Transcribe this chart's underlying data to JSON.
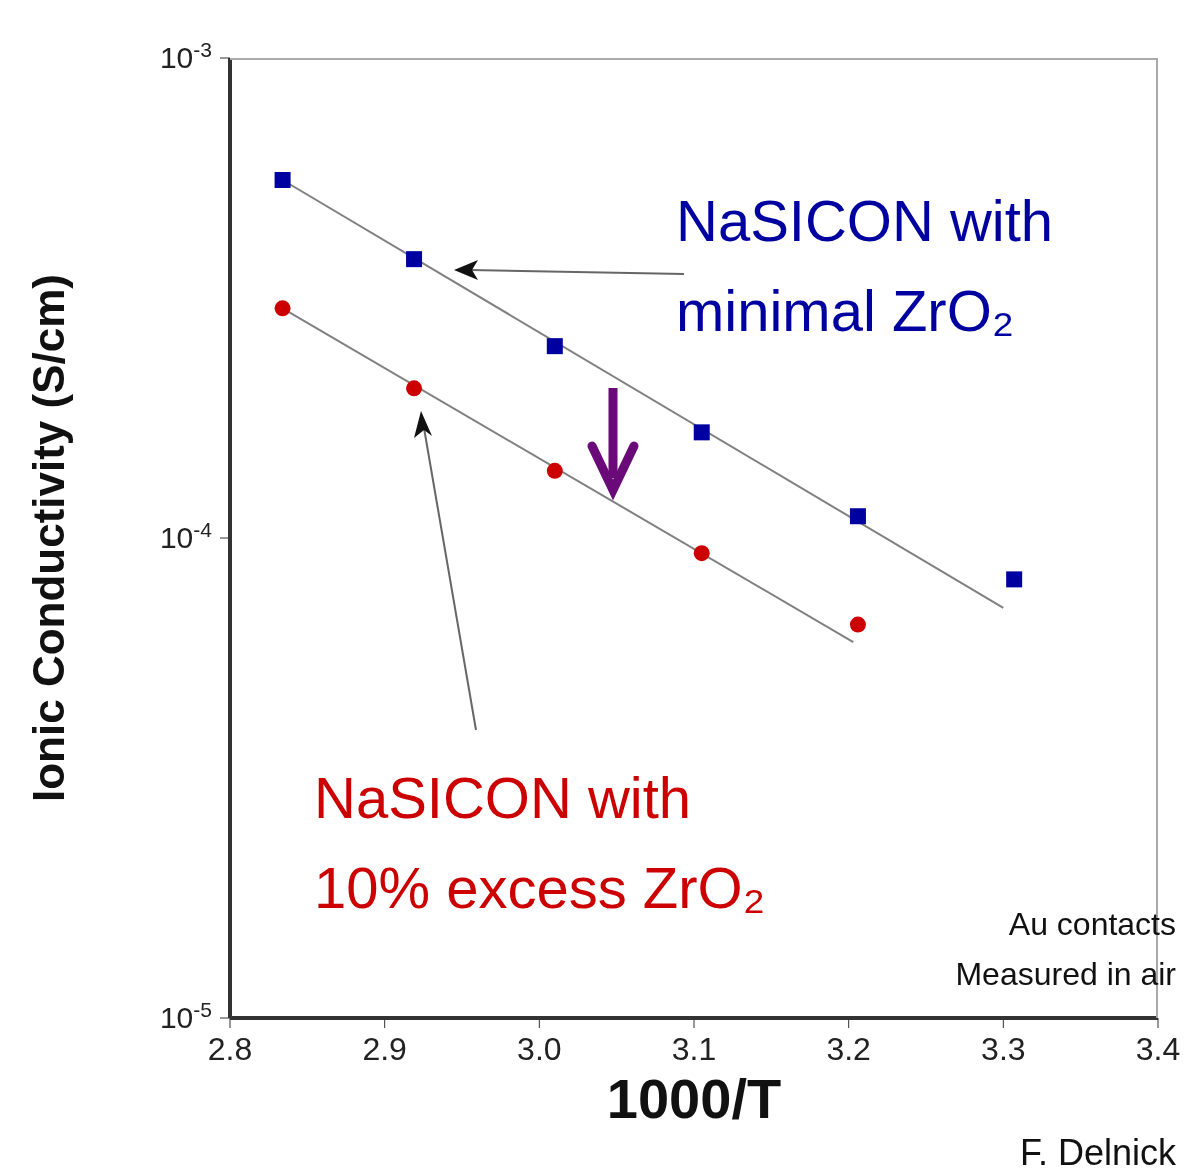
{
  "chart_data": {
    "type": "scatter",
    "xlabel": "1000/T",
    "ylabel": "Ionic Conductivity (S/cm)",
    "log": "y",
    "xlim": [
      2.8,
      3.4
    ],
    "xticks": [
      {
        "value": 2.8,
        "label": "2.8"
      },
      {
        "value": 2.9,
        "label": "2.9"
      },
      {
        "value": 3,
        "label": "3.0"
      },
      {
        "value": 3.1,
        "label": "3.1"
      },
      {
        "value": 3.2,
        "label": "3.2"
      },
      {
        "value": 3.3,
        "label": "3.3"
      },
      {
        "value": 3.4,
        "label": "3.4"
      }
    ],
    "ylim": [
      1e-05,
      0.001
    ],
    "yticks": [
      {
        "value": 1e-05,
        "label": "10$^{-5}$"
      },
      {
        "value": 0.0001,
        "label": "10$^{-4}$"
      },
      {
        "value": 0.001,
        "label": "10$^{-3}$"
      }
    ],
    "series": [
      {
        "name": "NaSICON with minimal ZrO₂",
        "marker": "square",
        "color": "#0000a0",
        "x": [
          2.834,
          2.919,
          3.01,
          3.105,
          3.206,
          3.307
        ],
        "values": [
          0.000557,
          0.000381,
          0.000251,
          0.000166,
          0.000111,
          8.2e-05
        ]
      },
      {
        "name": "NaSICON with 10% excess ZrO₂",
        "marker": "circle",
        "color": "#cc0000",
        "x": [
          2.834,
          2.919,
          3.01,
          3.105,
          3.206
        ],
        "values": [
          0.000301,
          0.000205,
          0.000138,
          9.3e-05,
          6.6e-05
        ]
      },
      {
        "type": "line",
        "marker": "none",
        "color": "#808080",
        "x": [
          2.834,
          3.3
        ],
        "values": [
          0.000557,
          7.15e-05
        ]
      },
      {
        "type": "line",
        "marker": "none",
        "color": "#808080",
        "x": [
          2.834,
          3.203
        ],
        "values": [
          0.000301,
          6.07e-05
        ]
      }
    ],
    "annotations": [
      "Au contacts",
      "Measured in air",
      "F. Delnick"
    ]
  }
}
